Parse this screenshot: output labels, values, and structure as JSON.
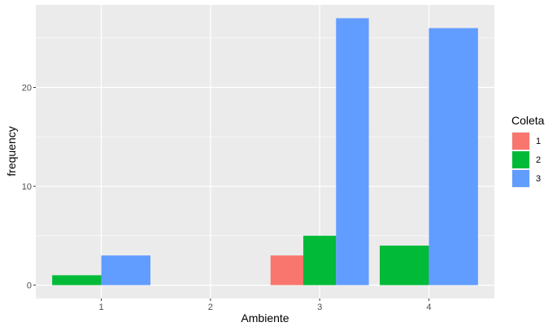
{
  "chart_data": {
    "type": "bar",
    "title": "",
    "xlabel": "Ambiente",
    "ylabel": "frequency",
    "categories": [
      "1",
      "2",
      "3",
      "4"
    ],
    "ylim": [
      -1.35,
      28.35
    ],
    "yticks": [
      0,
      10,
      20
    ],
    "grid": true,
    "legend": {
      "title": "Coleta",
      "position": "right",
      "entries": [
        {
          "label": "1",
          "color": "#F8766D"
        },
        {
          "label": "2",
          "color": "#00BA38"
        },
        {
          "label": "3",
          "color": "#619CFF"
        }
      ]
    },
    "series": [
      {
        "name": "1",
        "color": "#F8766D",
        "values": [
          0,
          0,
          3,
          0
        ]
      },
      {
        "name": "2",
        "color": "#00BA38",
        "values": [
          1,
          0,
          5,
          4
        ]
      },
      {
        "name": "3",
        "color": "#619CFF",
        "values": [
          3,
          0,
          27,
          26
        ]
      }
    ],
    "panel_background": "#EBEBEB",
    "grid_color": "#FFFFFF"
  }
}
